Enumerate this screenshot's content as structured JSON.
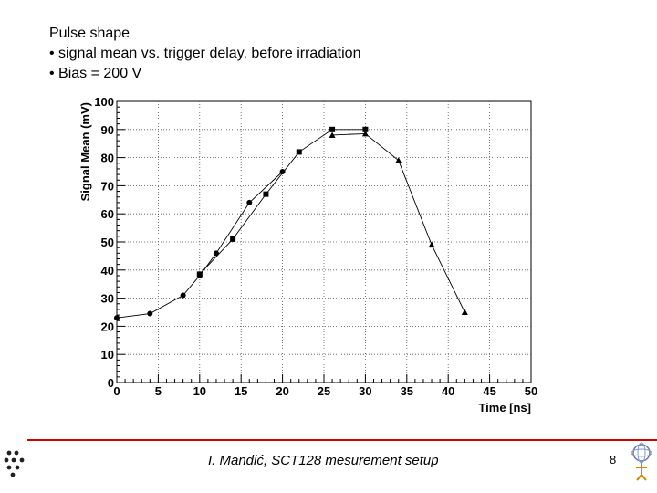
{
  "slide": {
    "heading": "Pulse shape",
    "bullet1": "• signal mean vs. trigger  delay, before irradiation",
    "bullet2": "• Bias = 200 V",
    "footer": "I. Mandić, SCT128 mesurement setup",
    "page_number": "8"
  },
  "chart_data": {
    "type": "line",
    "title": "",
    "xlabel": "Time [ns]",
    "ylabel": "Signal Mean (mV)",
    "xlim": [
      0,
      50
    ],
    "ylim": [
      0,
      100
    ],
    "xticks": [
      0,
      5,
      10,
      15,
      20,
      25,
      30,
      35,
      40,
      45,
      50
    ],
    "yticks": [
      0,
      10,
      20,
      30,
      40,
      50,
      60,
      70,
      80,
      90,
      100
    ],
    "grid": true,
    "series": [
      {
        "marker": "circle",
        "x": [
          0,
          4,
          8,
          10,
          12,
          16,
          20
        ],
        "y": [
          23,
          24.5,
          31,
          38,
          46,
          64,
          75
        ]
      },
      {
        "marker": "square",
        "x": [
          10,
          14,
          18,
          22,
          26,
          30
        ],
        "y": [
          38.5,
          51,
          67,
          82,
          90,
          90
        ]
      },
      {
        "marker": "triangle",
        "x": [
          26,
          30,
          34,
          38,
          42
        ],
        "y": [
          88,
          88.5,
          79,
          49,
          25
        ]
      }
    ]
  }
}
